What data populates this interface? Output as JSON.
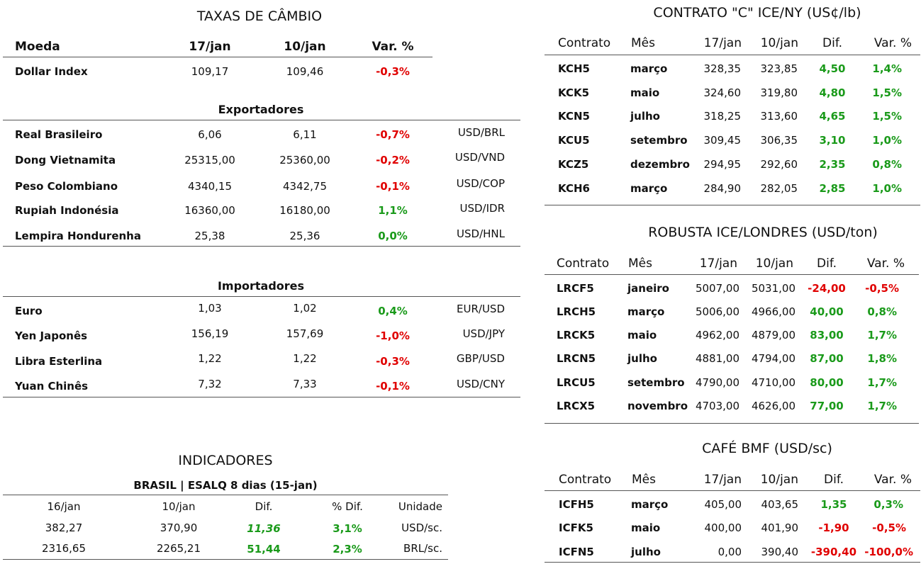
{
  "fx": {
    "title": "TAXAS DE CÂMBIO",
    "headers": [
      "Moeda",
      "17/jan",
      "10/jan",
      "Var. %"
    ],
    "dollar_index": {
      "name": "Dollar Index",
      "v1": "109,17",
      "v2": "109,46",
      "var": "-0,3%"
    },
    "exporters_title": "Exportadores",
    "exporters": [
      {
        "name": "Real Brasileiro",
        "v1": "6,06",
        "v2": "6,11",
        "var": "-0,7%",
        "pair": "USD/BRL"
      },
      {
        "name": "Dong Vietnamita",
        "v1": "25315,00",
        "v2": "25360,00",
        "var": "-0,2%",
        "pair": "USD/VND"
      },
      {
        "name": "Peso Colombiano",
        "v1": "4340,15",
        "v2": "4342,75",
        "var": "-0,1%",
        "pair": "USD/COP"
      },
      {
        "name": "Rupiah Indonésia",
        "v1": "16360,00",
        "v2": "16180,00",
        "var": "1,1%",
        "pair": "USD/IDR"
      },
      {
        "name": "Lempira Hondurenha",
        "v1": "25,38",
        "v2": "25,36",
        "var": "0,0%",
        "pair": "USD/HNL"
      }
    ],
    "importers_title": "Importadores",
    "importers": [
      {
        "name": "Euro",
        "v1": "1,03",
        "v2": "1,02",
        "var": "0,4%",
        "pair": "EUR/USD"
      },
      {
        "name": "Yen Japonês",
        "v1": "156,19",
        "v2": "157,69",
        "var": "-1,0%",
        "pair": "USD/JPY"
      },
      {
        "name": "Libra Esterlina",
        "v1": "1,22",
        "v2": "1,22",
        "var": "-0,3%",
        "pair": "GBP/USD"
      },
      {
        "name": "Yuan Chinês",
        "v1": "7,32",
        "v2": "7,33",
        "var": "-0,1%",
        "pair": "USD/CNY"
      }
    ]
  },
  "indicators": {
    "title": "INDICADORES",
    "subtitle": "BRASIL | ESALQ 8 dias (15-jan)",
    "headers": [
      "16/jan",
      "10/jan",
      "Dif.",
      "% Dif.",
      "Unidade"
    ],
    "rows": [
      {
        "v1": "382,27",
        "v2": "370,90",
        "dif": "11,36",
        "pdif": "3,1%",
        "unit": "USD/sc."
      },
      {
        "v1": "2316,65",
        "v2": "2265,21",
        "dif": "51,44",
        "pdif": "2,3%",
        "unit": "BRL/sc."
      }
    ]
  },
  "contract_c": {
    "title": "CONTRATO \"C\" ICE/NY (US¢/lb)",
    "headers": [
      "Contrato",
      "Mês",
      "17/jan",
      "10/jan",
      "Dif.",
      "Var. %"
    ],
    "rows": [
      {
        "code": "KCH5",
        "month": "março",
        "v1": "328,35",
        "v2": "323,85",
        "dif": "4,50",
        "var": "1,4%"
      },
      {
        "code": "KCK5",
        "month": "maio",
        "v1": "324,60",
        "v2": "319,80",
        "dif": "4,80",
        "var": "1,5%"
      },
      {
        "code": "KCN5",
        "month": "julho",
        "v1": "318,25",
        "v2": "313,60",
        "dif": "4,65",
        "var": "1,5%"
      },
      {
        "code": "KCU5",
        "month": "setembro",
        "v1": "309,45",
        "v2": "306,35",
        "dif": "3,10",
        "var": "1,0%"
      },
      {
        "code": "KCZ5",
        "month": "dezembro",
        "v1": "294,95",
        "v2": "292,60",
        "dif": "2,35",
        "var": "0,8%"
      },
      {
        "code": "KCH6",
        "month": "março",
        "v1": "284,90",
        "v2": "282,05",
        "dif": "2,85",
        "var": "1,0%"
      }
    ]
  },
  "robusta": {
    "title": "ROBUSTA ICE/LONDRES (USD/ton)",
    "headers": [
      "Contrato",
      "Mês",
      "17/jan",
      "10/jan",
      "Dif.",
      "Var. %"
    ],
    "rows": [
      {
        "code": "LRCF5",
        "month": "janeiro",
        "v1": "5007,00",
        "v2": "5031,00",
        "dif": "-24,00",
        "var": "-0,5%"
      },
      {
        "code": "LRCH5",
        "month": "março",
        "v1": "5006,00",
        "v2": "4966,00",
        "dif": "40,00",
        "var": "0,8%"
      },
      {
        "code": "LRCK5",
        "month": "maio",
        "v1": "4962,00",
        "v2": "4879,00",
        "dif": "83,00",
        "var": "1,7%"
      },
      {
        "code": "LRCN5",
        "month": "julho",
        "v1": "4881,00",
        "v2": "4794,00",
        "dif": "87,00",
        "var": "1,8%"
      },
      {
        "code": "LRCU5",
        "month": "setembro",
        "v1": "4790,00",
        "v2": "4710,00",
        "dif": "80,00",
        "var": "1,7%"
      },
      {
        "code": "LRCX5",
        "month": "novembro",
        "v1": "4703,00",
        "v2": "4626,00",
        "dif": "77,00",
        "var": "1,7%"
      }
    ]
  },
  "bmf": {
    "title": "CAFÉ BMF (USD/sc)",
    "headers": [
      "Contrato",
      "Mês",
      "17/jan",
      "10/jan",
      "Dif.",
      "Var. %"
    ],
    "rows": [
      {
        "code": "ICFH5",
        "month": "março",
        "v1": "405,00",
        "v2": "403,65",
        "dif": "1,35",
        "var": "0,3%"
      },
      {
        "code": "ICFK5",
        "month": "maio",
        "v1": "400,00",
        "v2": "401,90",
        "dif": "-1,90",
        "var": "-0,5%"
      },
      {
        "code": "ICFN5",
        "month": "julho",
        "v1": "0,00",
        "v2": "390,40",
        "dif": "-390,40",
        "var": "-100,0%"
      }
    ]
  },
  "colors": {
    "negative": "#e00000",
    "positive": "#1a9a1a"
  }
}
